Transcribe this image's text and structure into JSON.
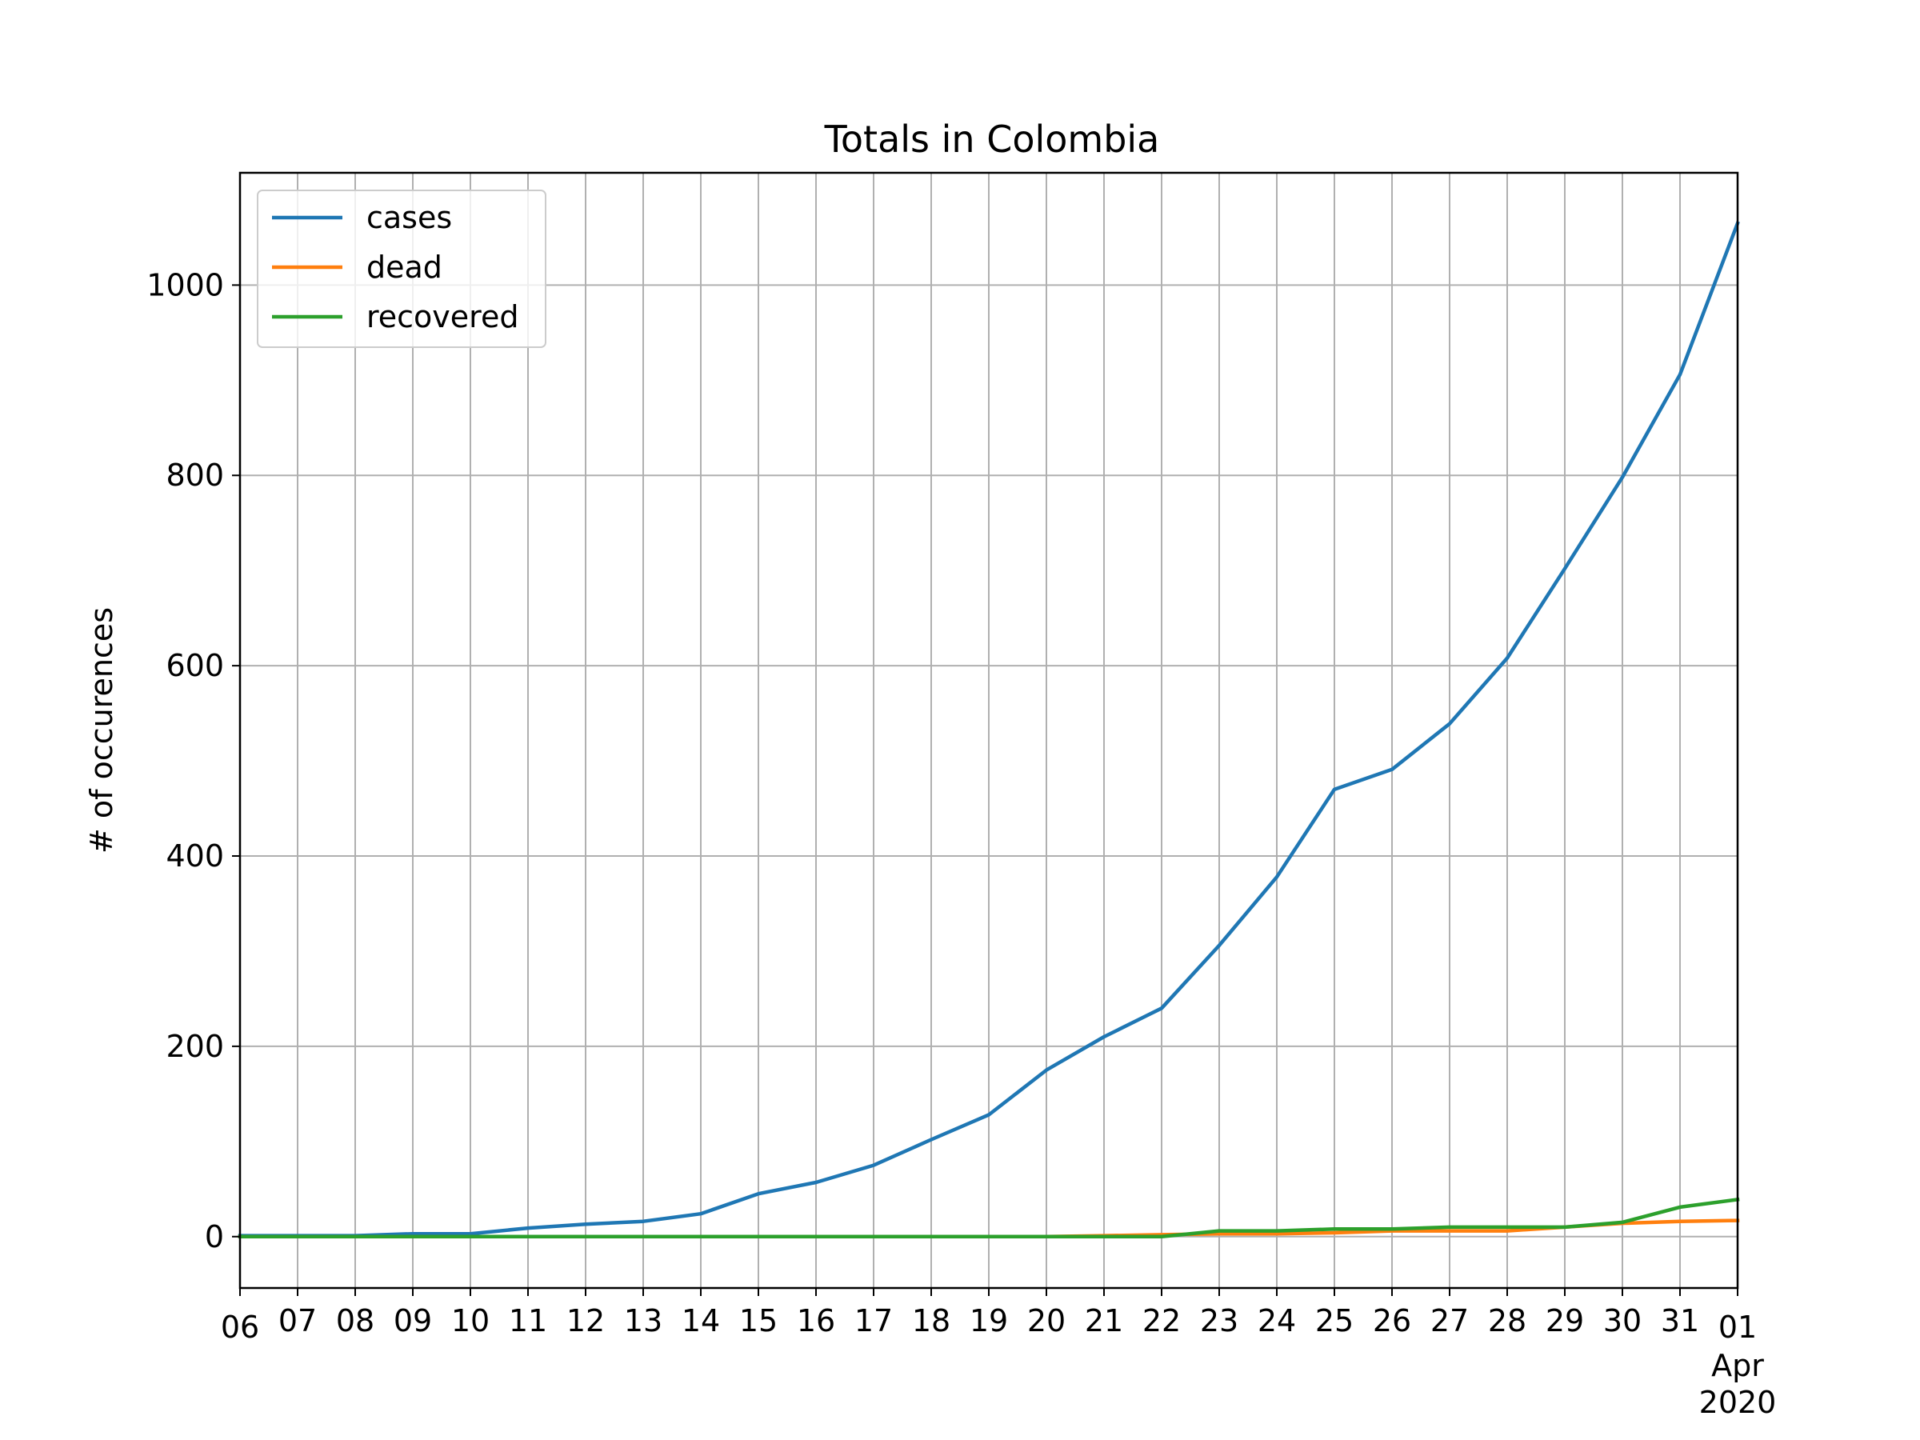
{
  "chart_data": {
    "type": "line",
    "title": "Totals in Colombia",
    "xlabel": "",
    "ylabel": "# of occurences",
    "x": [
      "06",
      "07",
      "08",
      "09",
      "10",
      "11",
      "12",
      "13",
      "14",
      "15",
      "16",
      "17",
      "18",
      "19",
      "20",
      "21",
      "22",
      "23",
      "24",
      "25",
      "26",
      "27",
      "28",
      "29",
      "30",
      "31",
      "01"
    ],
    "x_sublabels": [
      "Apr",
      "2020"
    ],
    "ylim": [
      -54,
      1118
    ],
    "yticks": [
      0,
      200,
      400,
      600,
      800,
      1000
    ],
    "grid": true,
    "legend_position": "upper left",
    "series": [
      {
        "name": "cases",
        "color": "#1f77b4",
        "values": [
          1,
          1,
          1,
          3,
          3,
          9,
          13,
          16,
          24,
          45,
          57,
          75,
          102,
          128,
          175,
          210,
          240,
          306,
          378,
          470,
          491,
          539,
          608,
          702,
          798,
          906,
          1065
        ]
      },
      {
        "name": "dead",
        "color": "#ff7f0e",
        "values": [
          0,
          0,
          0,
          0,
          0,
          0,
          0,
          0,
          0,
          0,
          0,
          0,
          0,
          0,
          0,
          1,
          2,
          3,
          3,
          4,
          6,
          6,
          6,
          10,
          14,
          16,
          17
        ]
      },
      {
        "name": "recovered",
        "color": "#2ca02c",
        "values": [
          0,
          0,
          0,
          0,
          0,
          0,
          0,
          0,
          0,
          0,
          0,
          0,
          0,
          0,
          0,
          0,
          0,
          6,
          6,
          8,
          8,
          10,
          10,
          10,
          15,
          31,
          39
        ]
      }
    ]
  }
}
